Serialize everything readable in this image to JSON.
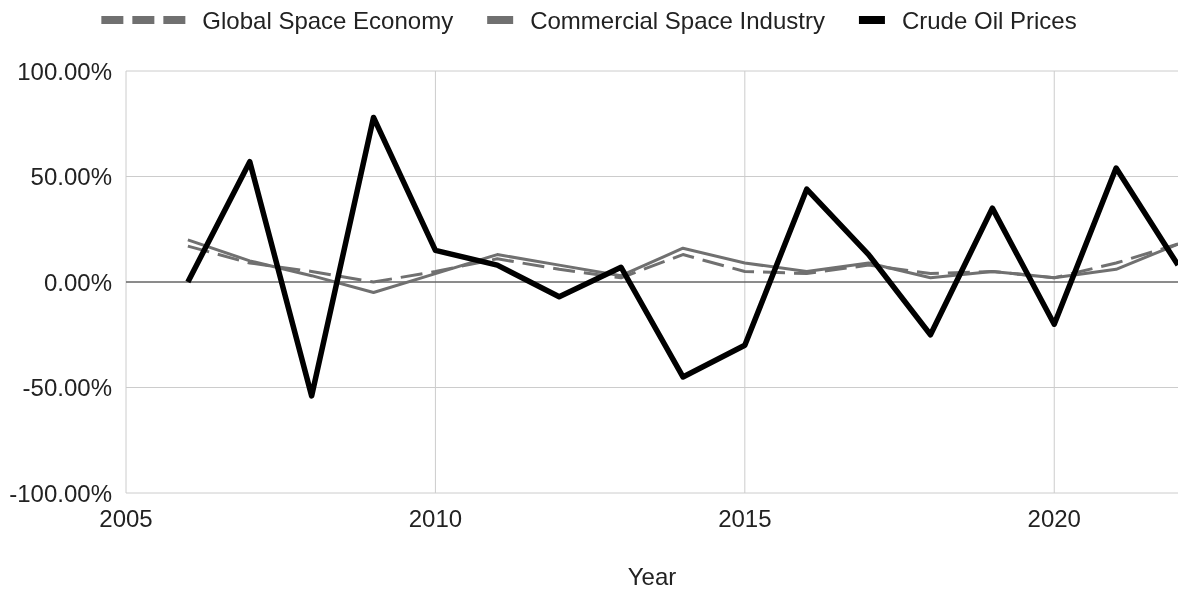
{
  "chart_data": {
    "type": "line",
    "x": [
      2006,
      2007,
      2008,
      2009,
      2010,
      2011,
      2012,
      2013,
      2014,
      2015,
      2016,
      2017,
      2018,
      2019,
      2020,
      2021,
      2022
    ],
    "series": [
      {
        "name": "Global Space Economy",
        "color": "#707070",
        "line_style": "dashed",
        "values": [
          17,
          9,
          5,
          0,
          5,
          11,
          6,
          2,
          13,
          5,
          4,
          8,
          4,
          5,
          2,
          9,
          18
        ]
      },
      {
        "name": "Commercial Space Industry",
        "color": "#707070",
        "values": [
          20,
          10,
          3,
          -5,
          4,
          13,
          8,
          3,
          16,
          9,
          5,
          9,
          2,
          5,
          2,
          6,
          18
        ]
      },
      {
        "name": "Crude Oil Prices",
        "color": "#000000",
        "values": [
          0,
          57,
          -54,
          78,
          15,
          8,
          -7,
          7,
          -45,
          -30,
          44,
          13,
          -25,
          35,
          -20,
          54,
          8
        ]
      }
    ],
    "xlabel": "Year",
    "xlim": [
      2005,
      2022
    ],
    "xticks": [
      2005,
      2010,
      2015,
      2020
    ],
    "ylim": [
      -100,
      100
    ],
    "yticks": [
      {
        "value": -100,
        "label": "-100.00%"
      },
      {
        "value": -50,
        "label": "-50.00%"
      },
      {
        "value": 0,
        "label": "0.00%"
      },
      {
        "value": 50,
        "label": "50.00%"
      },
      {
        "value": 100,
        "label": "100.00%"
      }
    ],
    "grid": true,
    "legend": "top",
    "ref_lines": [
      {
        "axis": "y",
        "value": 0,
        "color": "#333333"
      }
    ]
  }
}
